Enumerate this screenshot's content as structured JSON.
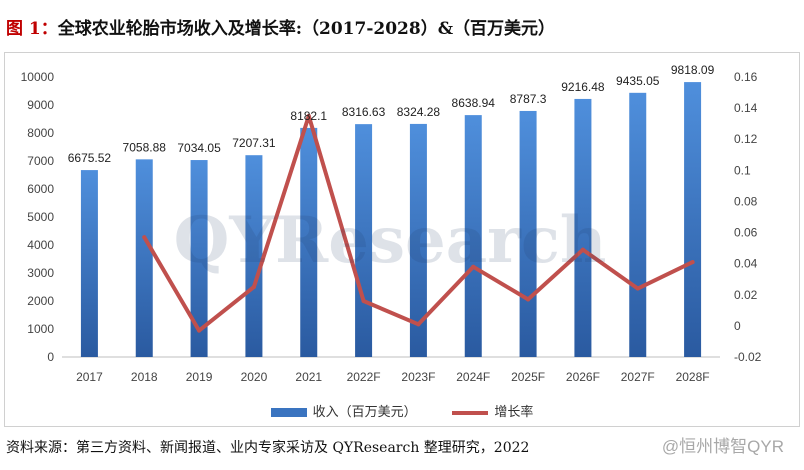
{
  "figure": {
    "label": "图  1：",
    "title": "全球农业轮胎市场收入及增长率:（2017-2028）&（百万美元）",
    "source": "资料来源：第三方资料、新闻报道、业内专家采访及 QYResearch 整理研究，2022",
    "watermark": "QYResearch",
    "brand": "@恒州博智QYR"
  },
  "colors": {
    "bar": "#3a74c0",
    "bar_dark": "#2a5aa0",
    "line": "#c0504d"
  },
  "chart_data": {
    "type": "bar+line",
    "categories": [
      "2017",
      "2018",
      "2019",
      "2020",
      "2021",
      "2022F",
      "2023F",
      "2024F",
      "2025F",
      "2026F",
      "2027F",
      "2028F"
    ],
    "series": [
      {
        "name": "收入（百万美元）",
        "type": "bar",
        "axis": "left",
        "values": [
          6675.52,
          7058.88,
          7034.05,
          7207.31,
          8182.1,
          8316.63,
          8324.28,
          8638.94,
          8787.3,
          9216.48,
          9435.05,
          9818.09
        ],
        "labels": [
          "6675.52",
          "7058.88",
          "7034.05",
          "7207.31",
          "8182.1",
          "8316.63",
          "8324.28",
          "8638.94",
          "8787.3",
          "9216.48",
          "9435.05",
          "9818.09"
        ]
      },
      {
        "name": "增长率",
        "type": "line",
        "axis": "right",
        "values": [
          null,
          0.057,
          -0.003,
          0.025,
          0.135,
          0.016,
          0.001,
          0.038,
          0.017,
          0.049,
          0.024,
          0.041
        ]
      }
    ],
    "y_left": {
      "min": 0,
      "max": 10000,
      "step": 1000,
      "tick_labels": [
        "0",
        "1000",
        "2000",
        "3000",
        "4000",
        "5000",
        "6000",
        "7000",
        "8000",
        "9000",
        "10000"
      ]
    },
    "y_right": {
      "min": -0.02,
      "max": 0.16,
      "step": 0.02,
      "tick_labels": [
        "-0.02",
        "0",
        "0.02",
        "0.04",
        "0.06",
        "0.08",
        "0.1",
        "0.12",
        "0.14",
        "0.16"
      ]
    },
    "legend": [
      "收入（百万美元）",
      "增长率"
    ],
    "legend_position": "bottom"
  }
}
